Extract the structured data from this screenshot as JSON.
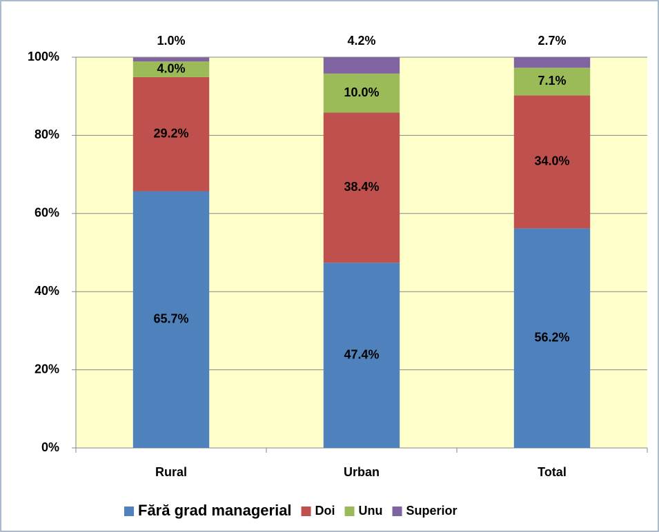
{
  "chart_data": {
    "type": "stacked-bar",
    "categories": [
      "Rural",
      "Urban",
      "Total"
    ],
    "series": [
      {
        "name": "Fără grad managerial",
        "color": "#4f81bd",
        "values": [
          65.7,
          47.4,
          56.2
        ],
        "value_labels": [
          "65.7%",
          "47.4%",
          "56.2%"
        ]
      },
      {
        "name": "Doi",
        "color": "#c0504d",
        "values": [
          29.2,
          38.4,
          34.0
        ],
        "value_labels": [
          "29.2%",
          "38.4%",
          "34.0%"
        ]
      },
      {
        "name": "Unu",
        "color": "#9bbb59",
        "values": [
          4.0,
          10.0,
          7.1
        ],
        "value_labels": [
          "4.0%",
          "10.0%",
          "7.1%"
        ]
      },
      {
        "name": "Superior",
        "color": "#8064a2",
        "values": [
          1.0,
          4.2,
          2.7
        ],
        "value_labels": [
          "1.0%",
          "4.2%",
          "2.7%"
        ]
      }
    ],
    "ylim": [
      0,
      100
    ],
    "yticks": [
      {
        "value": 0,
        "label": "0%"
      },
      {
        "value": 20,
        "label": "20%"
      },
      {
        "value": 40,
        "label": "40%"
      },
      {
        "value": 60,
        "label": "60%"
      },
      {
        "value": 80,
        "label": "80%"
      },
      {
        "value": 100,
        "label": "100%"
      }
    ],
    "grid": true,
    "legend": "bottom",
    "plot_background": "#ffffcc"
  }
}
